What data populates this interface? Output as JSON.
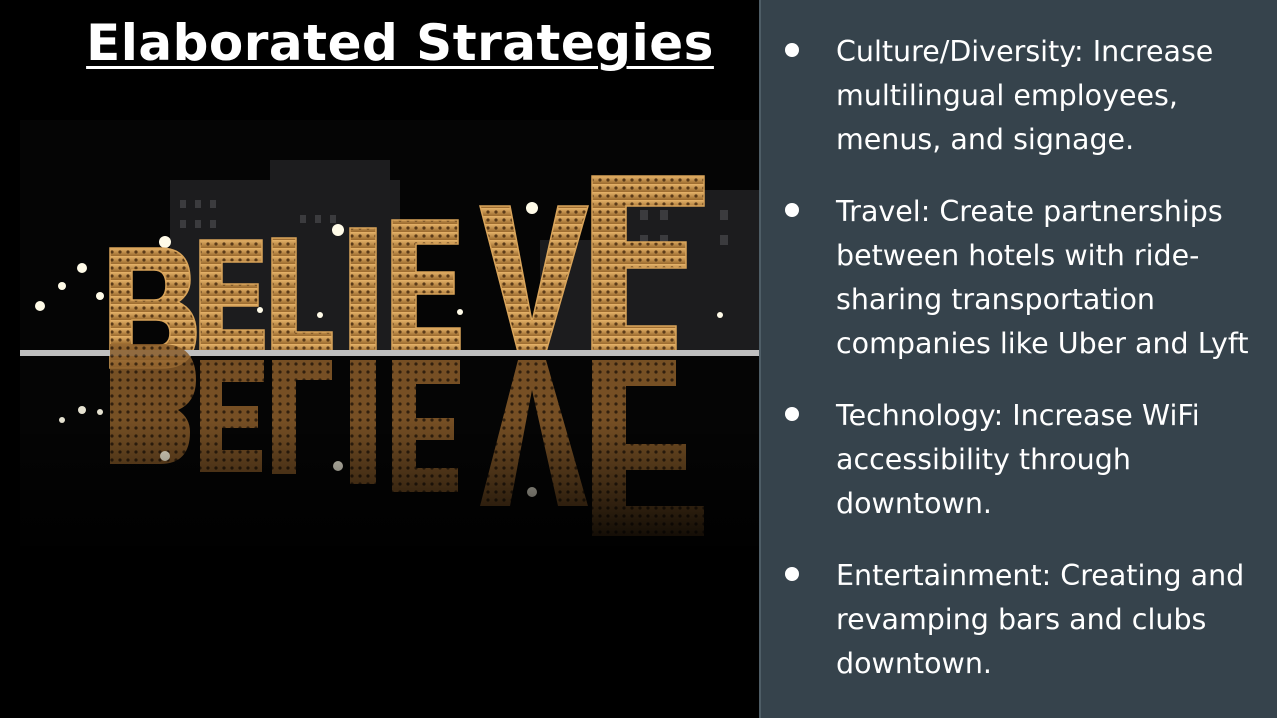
{
  "slide": {
    "title": "Elaborated Strategies",
    "image": {
      "subject": "believe-sign-night-photo",
      "lettering": "BELIEVE"
    },
    "bullets": [
      {
        "text": "Culture/Diversity: Increase multilingual employees, menus, and signage."
      },
      {
        "text": "Travel: Create partnerships between hotels with ride-sharing transportation companies like Uber and Lyft"
      },
      {
        "text": "Technology: Increase WiFi accessibility through downtown."
      },
      {
        "text": "Entertainment: Creating and revamping bars and clubs downtown."
      }
    ],
    "colors": {
      "left_background": "#000000",
      "right_panel": "#36434c",
      "text": "#ffffff",
      "sign_gold": "#c9954a"
    }
  }
}
